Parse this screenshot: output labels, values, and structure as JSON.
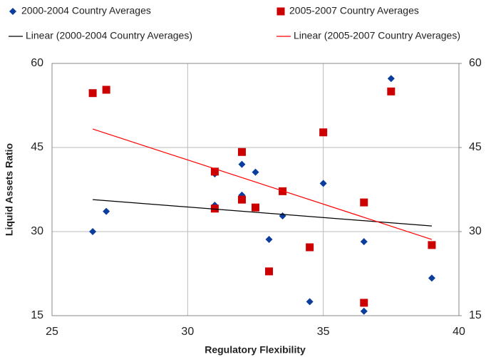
{
  "chart_data": {
    "type": "scatter",
    "x_label": "Regulatory Flexibility",
    "y_label": "Liquid Assets Ratio",
    "xlim": [
      25,
      40
    ],
    "xticks": [
      25,
      30,
      35,
      40
    ],
    "ylim": [
      15,
      60
    ],
    "yticks": [
      15,
      30,
      45,
      60
    ],
    "y2lim": [
      15,
      60
    ],
    "y2ticks": [
      15,
      30,
      45,
      60
    ],
    "grid": true,
    "legend": "top",
    "series": [
      {
        "name": "2000-2004 Country Averages",
        "color": "#0b3d9c",
        "marker": "diamond",
        "x": [
          26.5,
          27,
          31,
          31,
          32,
          32,
          32.5,
          33,
          33.5,
          34.5,
          35,
          36.5,
          36.5,
          37.5,
          39
        ],
        "values": [
          30,
          33.6,
          40.3,
          34.7,
          42,
          36.5,
          40.6,
          28.6,
          32.8,
          17.5,
          38.6,
          28.2,
          15.8,
          57.3,
          21.7
        ]
      },
      {
        "name": "2005-2007 Country Averages",
        "color": "#cc0000",
        "marker": "square",
        "x": [
          26.5,
          27,
          31,
          31,
          32,
          32,
          32.5,
          33,
          33.5,
          34.5,
          35,
          36.5,
          36.5,
          37.5,
          39
        ],
        "values": [
          54.7,
          55.3,
          40.7,
          34.1,
          44.2,
          35.7,
          34.3,
          22.9,
          37.2,
          27.2,
          47.7,
          35.2,
          17.3,
          55,
          27.6
        ]
      },
      {
        "name": "Linear (2000-2004 Country Averages)",
        "color": "#000000",
        "marker": "line",
        "x": [
          26.5,
          39
        ],
        "values": [
          35.7,
          31
        ]
      },
      {
        "name": "Linear (2005-2007 Country Averages)",
        "color": "#ff0000",
        "marker": "line",
        "x": [
          26.5,
          39
        ],
        "values": [
          48.3,
          28.6
        ]
      }
    ]
  }
}
